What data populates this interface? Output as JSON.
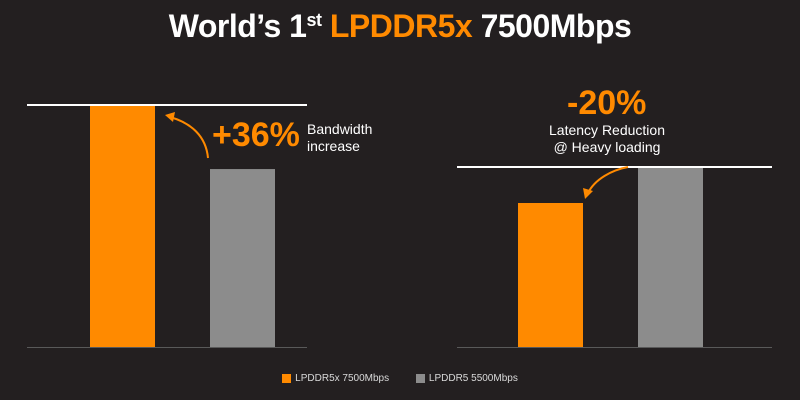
{
  "title": {
    "prefix": "World’s 1",
    "sup": "st",
    "highlight": "LPDDR5x",
    "suffix": "7500Mbps"
  },
  "colors": {
    "accent": "#ff8a00",
    "gray": "#8c8c8c",
    "background": "#231f20",
    "axis": "#595959"
  },
  "callouts": {
    "bandwidth": {
      "percent": "+36%",
      "line1": "Bandwidth",
      "line2": "increase"
    },
    "latency": {
      "percent": "-20%",
      "line1": "Latency Reduction",
      "line2": "@ Heavy loading"
    }
  },
  "legend": [
    {
      "label": "LPDDR5x 7500Mbps",
      "color": "#ff8a00"
    },
    {
      "label": "LPDDR5 5500Mbps",
      "color": "#8c8c8c"
    }
  ],
  "chart_data": [
    {
      "type": "bar",
      "categories": [
        "LPDDR5x 7500Mbps",
        "LPDDR5 5500Mbps"
      ],
      "values": [
        136,
        100
      ],
      "reference_line": 136,
      "annotation": "+36% Bandwidth increase",
      "ylim": [
        0,
        136
      ],
      "grid": false,
      "legend": "bottom"
    },
    {
      "type": "bar",
      "categories": [
        "LPDDR5x 7500Mbps",
        "LPDDR5 5500Mbps"
      ],
      "values": [
        80,
        100
      ],
      "reference_line": 100,
      "annotation": "-20% Latency Reduction @ Heavy loading",
      "ylim": [
        0,
        100
      ],
      "grid": false,
      "legend": "bottom"
    }
  ]
}
